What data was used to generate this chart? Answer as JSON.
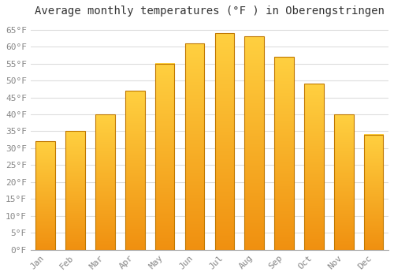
{
  "title": "Average monthly temperatures (°F ) in Oberengstringen",
  "months": [
    "Jan",
    "Feb",
    "Mar",
    "Apr",
    "May",
    "Jun",
    "Jul",
    "Aug",
    "Sep",
    "Oct",
    "Nov",
    "Dec"
  ],
  "values": [
    32,
    35,
    40,
    47,
    55,
    61,
    64,
    63,
    57,
    49,
    40,
    34
  ],
  "bar_color_top": "#FFD040",
  "bar_color_bottom": "#F09010",
  "bar_edge_color": "#C07800",
  "background_color": "#FFFFFF",
  "grid_color": "#DDDDDD",
  "ylim": [
    0,
    67
  ],
  "yticks": [
    0,
    5,
    10,
    15,
    20,
    25,
    30,
    35,
    40,
    45,
    50,
    55,
    60,
    65
  ],
  "title_fontsize": 10,
  "tick_fontsize": 8,
  "tick_color": "#888888",
  "title_color": "#333333"
}
